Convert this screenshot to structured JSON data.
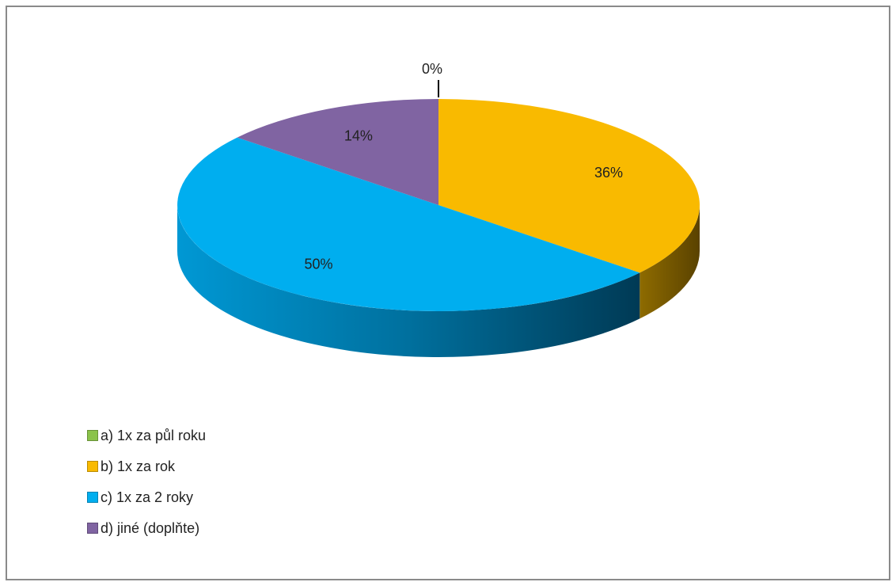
{
  "chart_data": {
    "type": "pie",
    "title": "",
    "style": "3d",
    "labels": [
      "a) 1x za půl roku",
      "b) 1x za rok",
      "c) 1x za 2 roky",
      "d) jiné (doplňte)"
    ],
    "values": [
      0,
      36,
      50,
      14
    ],
    "value_labels": [
      "0%",
      "36%",
      "50%",
      "14%"
    ],
    "colors": [
      "#8BC34A",
      "#F9BA00",
      "#00AEEF",
      "#8064A2"
    ],
    "legend_position": "bottom-left"
  }
}
